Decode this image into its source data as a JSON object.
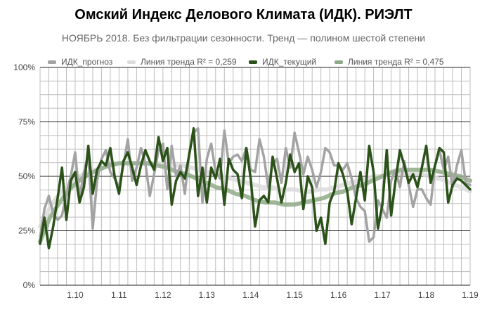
{
  "chart_data": {
    "type": "line",
    "title": "Омский Индекс Делового Климата (ИДК). РИЭЛТ",
    "subtitle": "НОЯБРЬ 2018. Без фильтрации сезонности. Тренд — полином шестой степени",
    "y_ticks": [
      "0%",
      "25%",
      "50%",
      "75%",
      "100%"
    ],
    "ylim": [
      0,
      100
    ],
    "x_ticks": [
      "1.10",
      "1.11",
      "1.12",
      "1.13",
      "1.14",
      "1.15",
      "1.16",
      "1.17",
      "1.18",
      "1.19"
    ],
    "xlim": [
      0,
      98
    ],
    "x_ticks_at": [
      8,
      18,
      28,
      38,
      48,
      58,
      68,
      78,
      88,
      98
    ],
    "grid": true,
    "legend_position": "top",
    "series": [
      {
        "name": "ИДК_прогноз",
        "color": "#a3a3a3",
        "kind": "data",
        "values": [
          22,
          35,
          41,
          33,
          30,
          32,
          42,
          50,
          61,
          40,
          52,
          60,
          26,
          48,
          58,
          62,
          52,
          49,
          45,
          55,
          67,
          48,
          54,
          63,
          56,
          41,
          51,
          62,
          65,
          44,
          64,
          50,
          55,
          42,
          61,
          70,
          72,
          38,
          58,
          65,
          52,
          49,
          71,
          56,
          59,
          60,
          57,
          63,
          53,
          52,
          67,
          59,
          45,
          56,
          58,
          47,
          63,
          54,
          70,
          61,
          51,
          59,
          53,
          45,
          52,
          63,
          61,
          55,
          55,
          53,
          56,
          49,
          40,
          36,
          34,
          20,
          22,
          39,
          35,
          31,
          48,
          53,
          45,
          57,
          46,
          36,
          44,
          44,
          40,
          37,
          55,
          62,
          53,
          59,
          45,
          55,
          62,
          47,
          46
        ]
      },
      {
        "name": "Линия тренда R² = 0,259",
        "color": "#dcdcdc",
        "kind": "trend",
        "values": [
          27,
          34,
          40,
          44,
          47,
          50,
          52,
          53,
          54,
          55,
          56,
          56,
          56,
          56,
          56,
          56,
          55,
          55,
          55,
          54,
          53,
          52,
          51,
          50,
          49,
          48,
          47,
          46,
          45,
          45,
          44,
          44,
          44,
          43,
          43,
          44,
          44,
          45,
          46,
          47,
          48,
          49,
          50,
          50,
          51,
          51,
          51,
          51,
          51,
          50,
          49,
          48,
          46,
          45,
          43
        ]
      },
      {
        "name": "ИДК_текущий",
        "color": "#2b5219",
        "kind": "data",
        "values": [
          19,
          31,
          17,
          27,
          40,
          54,
          30,
          48,
          52,
          38,
          45,
          64,
          42,
          53,
          57,
          55,
          63,
          50,
          42,
          57,
          61,
          54,
          46,
          55,
          62,
          57,
          53,
          68,
          57,
          63,
          37,
          48,
          52,
          49,
          60,
          72,
          41,
          54,
          38,
          54,
          49,
          58,
          37,
          58,
          53,
          51,
          40,
          63,
          49,
          27,
          39,
          41,
          38,
          59,
          49,
          38,
          47,
          60,
          52,
          56,
          35,
          50,
          45,
          25,
          31,
          19,
          38,
          43,
          56,
          51,
          43,
          28,
          40,
          52,
          39,
          64,
          52,
          26,
          37,
          62,
          32,
          48,
          62,
          55,
          47,
          51,
          45,
          54,
          64,
          47,
          55,
          63,
          61,
          38,
          46,
          49,
          48,
          46,
          44
        ]
      },
      {
        "name": "Линия тренда R² = 0,475",
        "color": "#8faa86",
        "kind": "trend",
        "values": [
          20,
          31,
          38,
          44,
          48,
          51,
          53,
          55,
          56,
          56,
          56,
          56,
          55,
          54,
          52,
          51,
          49,
          47,
          45,
          44,
          42,
          41,
          39,
          38,
          38,
          37,
          37,
          38,
          39,
          40,
          42,
          43,
          45,
          46,
          48,
          50,
          52,
          53,
          53,
          53,
          53,
          52,
          51,
          50,
          48
        ]
      }
    ]
  }
}
